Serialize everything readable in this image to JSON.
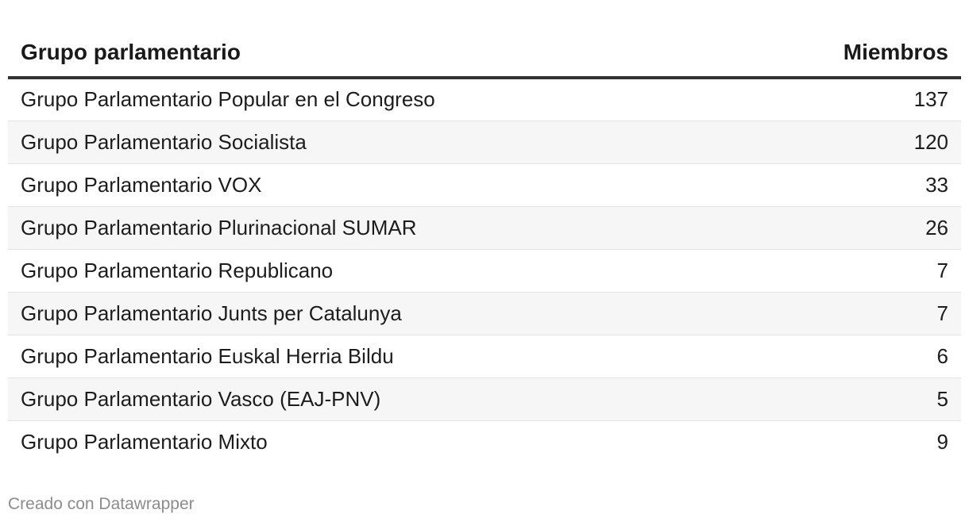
{
  "chart_data": {
    "type": "table",
    "columns": [
      "Grupo parlamentario",
      "Miembros"
    ],
    "rows": [
      {
        "grupo": "Grupo Parlamentario Popular en el Congreso",
        "miembros": "137"
      },
      {
        "grupo": "Grupo Parlamentario Socialista",
        "miembros": "120"
      },
      {
        "grupo": "Grupo Parlamentario VOX",
        "miembros": "33"
      },
      {
        "grupo": "Grupo Parlamentario Plurinacional SUMAR",
        "miembros": "26"
      },
      {
        "grupo": "Grupo Parlamentario Republicano",
        "miembros": "7"
      },
      {
        "grupo": "Grupo Parlamentario Junts per Catalunya",
        "miembros": "7"
      },
      {
        "grupo": "Grupo Parlamentario Euskal Herria Bildu",
        "miembros": "6"
      },
      {
        "grupo": "Grupo Parlamentario Vasco (EAJ-PNV)",
        "miembros": "5"
      },
      {
        "grupo": "Grupo Parlamentario Mixto",
        "miembros": "9"
      }
    ]
  },
  "footer": {
    "credit": "Creado con Datawrapper"
  },
  "colors": {
    "header_rule": "#333333",
    "row_stripe": "#f6f6f6",
    "row_divider": "#e2e2e2",
    "footer_text": "#8c8c8c"
  }
}
